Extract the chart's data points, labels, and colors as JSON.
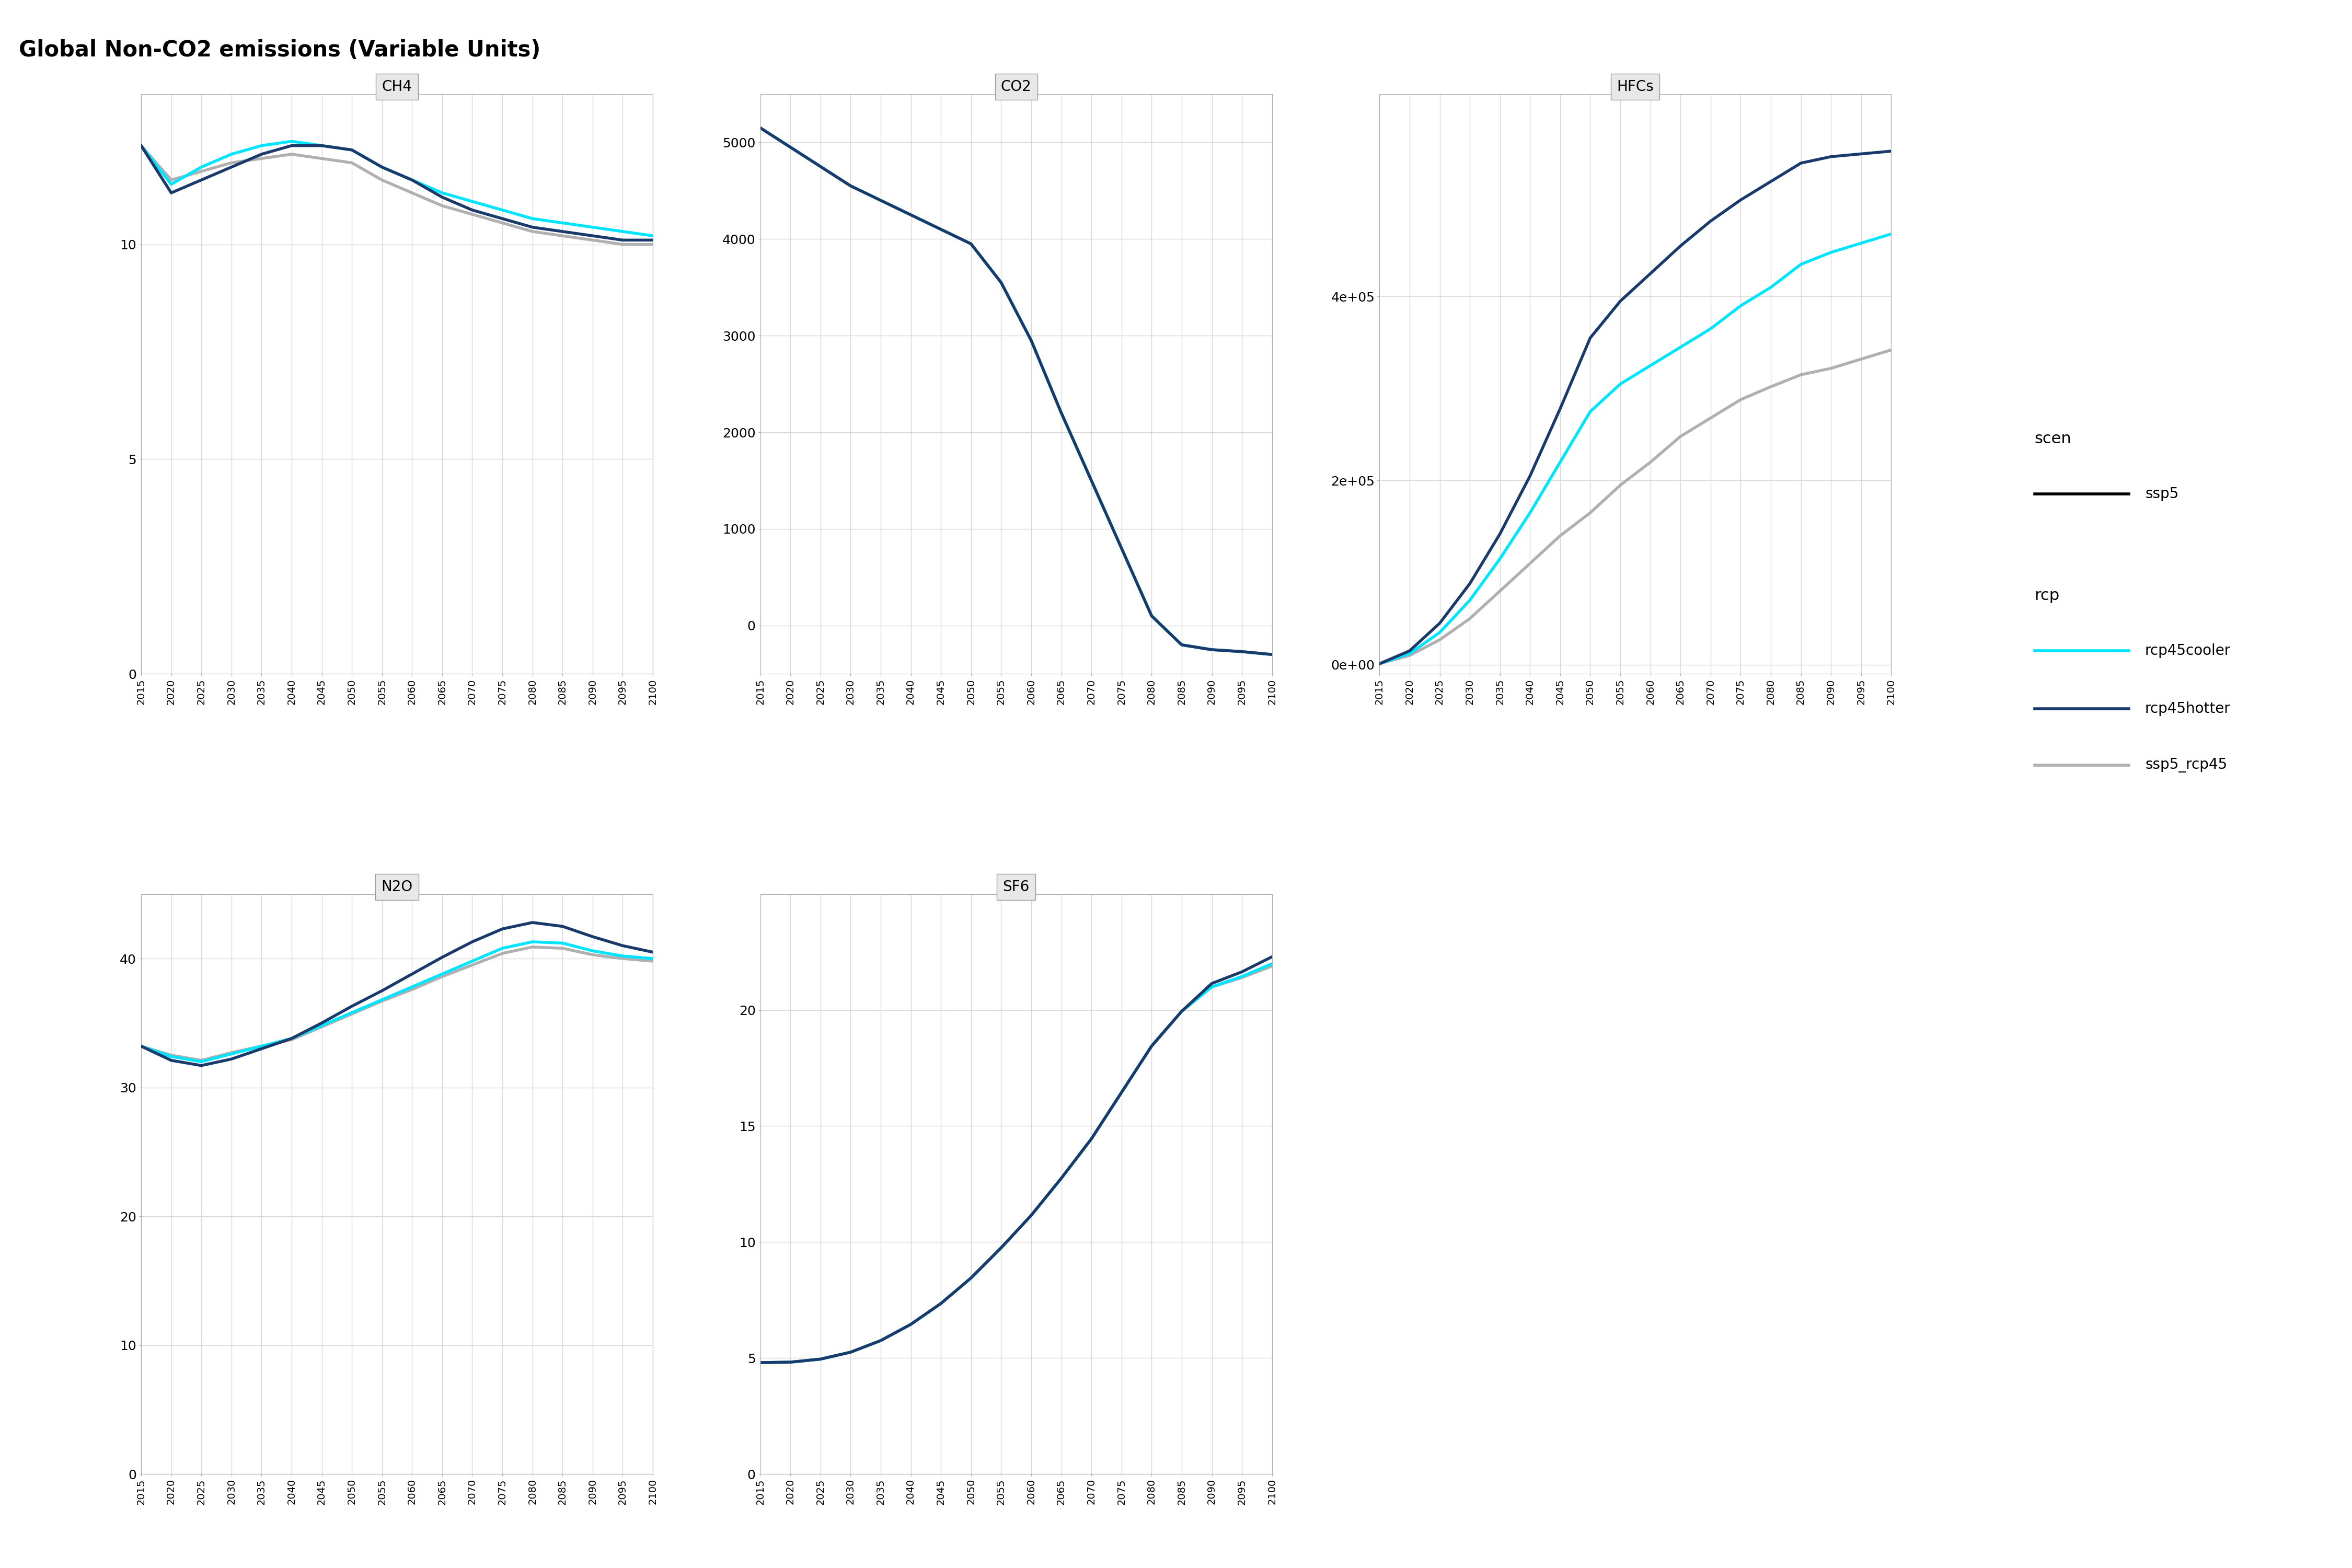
{
  "title": "Global Non-CO2 emissions (Variable Units)",
  "years": [
    2015,
    2020,
    2025,
    2030,
    2035,
    2040,
    2045,
    2050,
    2055,
    2060,
    2065,
    2070,
    2075,
    2080,
    2085,
    2090,
    2095,
    2100
  ],
  "colors": {
    "rcp45cooler": "#00E5FF",
    "rcp45hotter": "#1A3A6B",
    "ssp5_rcp45": "#B0B0B0"
  },
  "CH4": {
    "rcp45cooler": [
      12.3,
      11.4,
      11.8,
      12.1,
      12.3,
      12.4,
      12.3,
      12.2,
      11.8,
      11.5,
      11.2,
      11.0,
      10.8,
      10.6,
      10.5,
      10.4,
      10.3,
      10.2
    ],
    "rcp45hotter": [
      12.3,
      11.2,
      11.5,
      11.8,
      12.1,
      12.3,
      12.3,
      12.2,
      11.8,
      11.5,
      11.1,
      10.8,
      10.6,
      10.4,
      10.3,
      10.2,
      10.1,
      10.1
    ],
    "ssp5_rcp45": [
      12.3,
      11.5,
      11.7,
      11.9,
      12.0,
      12.1,
      12.0,
      11.9,
      11.5,
      11.2,
      10.9,
      10.7,
      10.5,
      10.3,
      10.2,
      10.1,
      10.0,
      10.0
    ]
  },
  "CO2": {
    "rcp45cooler": [
      5150,
      4950,
      4750,
      4550,
      4400,
      4250,
      4100,
      3950,
      3550,
      2950,
      2200,
      1500,
      800,
      100,
      -200,
      -250,
      -270,
      -300
    ],
    "rcp45hotter": [
      5150,
      4950,
      4750,
      4550,
      4400,
      4250,
      4100,
      3950,
      3550,
      2950,
      2200,
      1500,
      800,
      100,
      -200,
      -250,
      -270,
      -300
    ],
    "ssp5_rcp45": [
      5150,
      4950,
      4750,
      4550,
      4400,
      4250,
      4100,
      3950,
      3550,
      2950,
      2200,
      1500,
      800,
      100,
      -200,
      -250,
      -270,
      -300
    ]
  },
  "HFCs": {
    "rcp45cooler": [
      1000,
      12000,
      35000,
      70000,
      115000,
      165000,
      220000,
      275000,
      305000,
      325000,
      345000,
      365000,
      390000,
      410000,
      435000,
      448000,
      458000,
      468000
    ],
    "rcp45hotter": [
      1000,
      15000,
      45000,
      88000,
      142000,
      205000,
      278000,
      355000,
      395000,
      425000,
      455000,
      482000,
      505000,
      525000,
      545000,
      552000,
      555000,
      558000
    ],
    "ssp5_rcp45": [
      1000,
      10000,
      27000,
      50000,
      80000,
      110000,
      140000,
      165000,
      195000,
      220000,
      248000,
      268000,
      288000,
      302000,
      315000,
      322000,
      332000,
      342000
    ]
  },
  "N2O": {
    "rcp45cooler": [
      33.2,
      32.4,
      32.0,
      32.6,
      33.2,
      33.8,
      34.8,
      35.8,
      36.8,
      37.8,
      38.8,
      39.8,
      40.8,
      41.3,
      41.2,
      40.6,
      40.2,
      40.0
    ],
    "rcp45hotter": [
      33.2,
      32.1,
      31.7,
      32.2,
      33.0,
      33.8,
      35.0,
      36.3,
      37.5,
      38.8,
      40.1,
      41.3,
      42.3,
      42.8,
      42.5,
      41.7,
      41.0,
      40.5
    ],
    "ssp5_rcp45": [
      33.2,
      32.5,
      32.1,
      32.7,
      33.2,
      33.7,
      34.7,
      35.7,
      36.7,
      37.6,
      38.6,
      39.5,
      40.4,
      40.9,
      40.8,
      40.3,
      40.0,
      39.8
    ]
  },
  "SF6": {
    "rcp45cooler": [
      4.8,
      4.82,
      4.95,
      5.25,
      5.75,
      6.45,
      7.35,
      8.45,
      9.75,
      11.15,
      12.75,
      14.45,
      16.45,
      18.45,
      19.95,
      21.0,
      21.45,
      22.0
    ],
    "rcp45hotter": [
      4.8,
      4.82,
      4.95,
      5.25,
      5.75,
      6.45,
      7.35,
      8.45,
      9.75,
      11.15,
      12.75,
      14.45,
      16.45,
      18.45,
      19.95,
      21.15,
      21.65,
      22.3
    ],
    "ssp5_rcp45": [
      4.8,
      4.82,
      4.95,
      5.25,
      5.75,
      6.45,
      7.35,
      8.45,
      9.75,
      11.15,
      12.75,
      14.45,
      16.45,
      18.45,
      19.95,
      21.0,
      21.4,
      21.9
    ]
  },
  "subplot_titles": [
    "CH4",
    "CO2",
    "HFCs",
    "N2O",
    "SF6"
  ],
  "ylims": {
    "CH4": [
      0,
      13.5
    ],
    "CO2": [
      -500,
      5500
    ],
    "HFCs": [
      -10000,
      620000
    ],
    "N2O": [
      0,
      45
    ],
    "SF6": [
      0,
      25
    ]
  },
  "yticks": {
    "CH4": [
      0,
      5,
      10
    ],
    "CO2": [
      0,
      1000,
      2000,
      3000,
      4000,
      5000
    ],
    "HFCs": [
      0,
      200000,
      400000
    ],
    "N2O": [
      0,
      10,
      20,
      30,
      40
    ],
    "SF6": [
      0,
      5,
      10,
      15,
      20
    ]
  }
}
